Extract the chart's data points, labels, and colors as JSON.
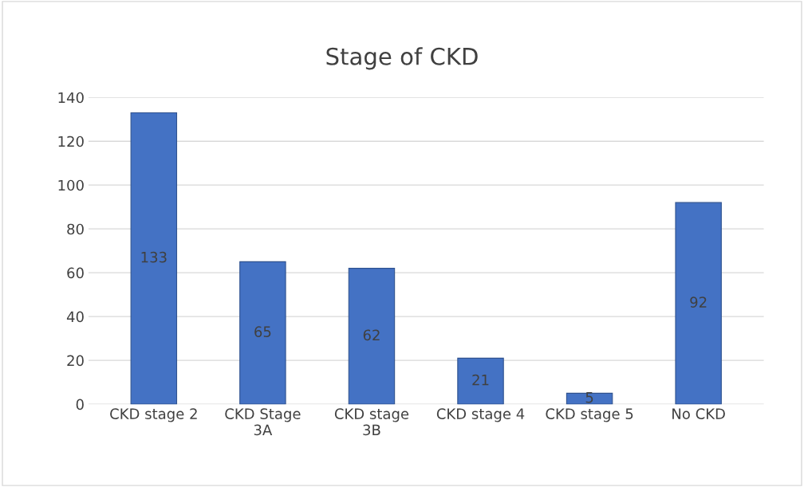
{
  "chart_data": {
    "type": "bar",
    "title": "Stage of CKD",
    "categories": [
      "CKD stage 2",
      "CKD Stage 3A",
      "CKD stage 3B",
      "CKD stage 4",
      "CKD stage 5",
      "No CKD"
    ],
    "values": [
      133,
      65,
      62,
      21,
      5,
      92
    ],
    "color": "#4472c4",
    "ylim": [
      0,
      140
    ],
    "yticks": [
      0,
      20,
      40,
      60,
      80,
      100,
      120,
      140
    ],
    "grid": "y",
    "data_labels": true
  }
}
